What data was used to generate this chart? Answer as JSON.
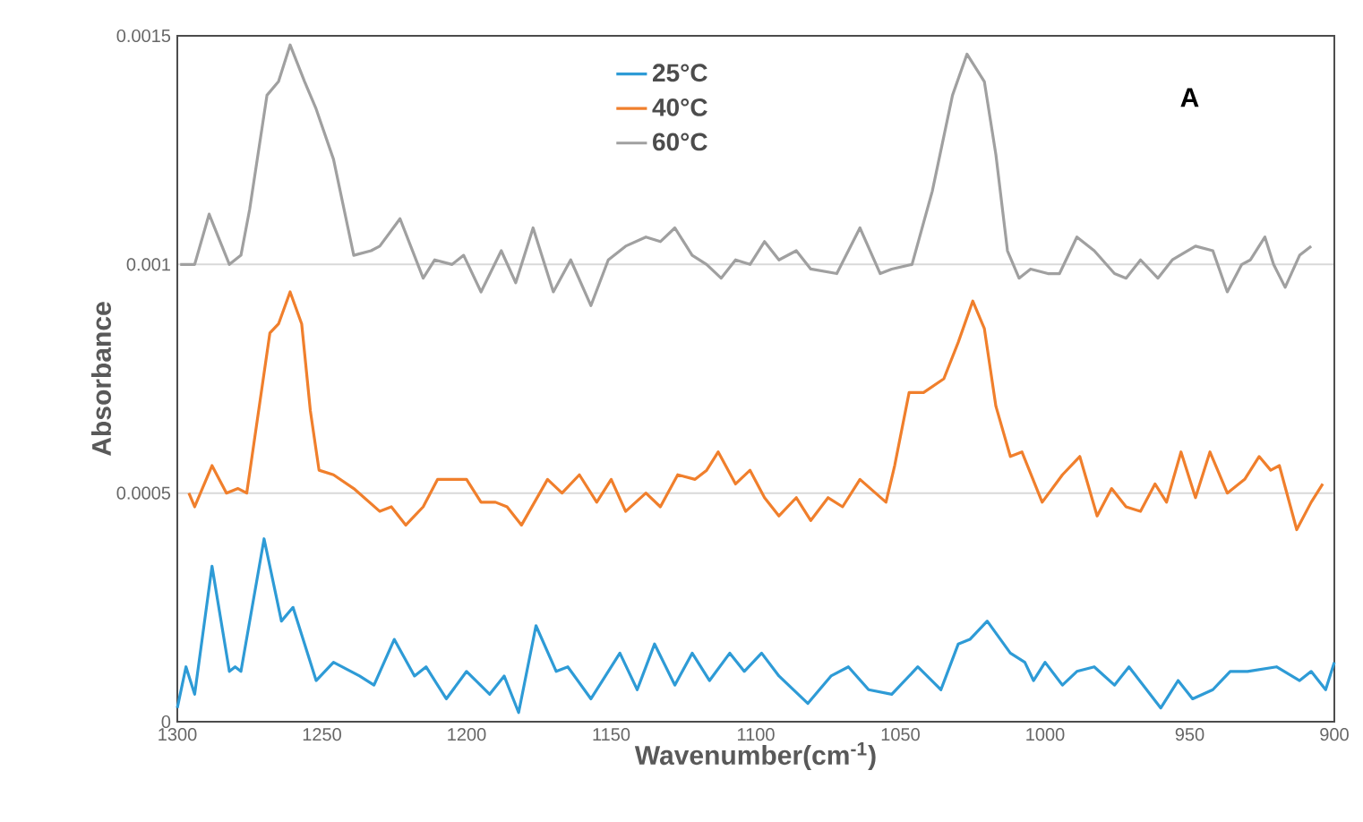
{
  "chart_data": {
    "type": "line",
    "xlabel": "Wavenumber(cm$^{-1}$)",
    "ylabel": "Absorbance",
    "annotations": [
      "A"
    ],
    "xlim": [
      1300,
      900
    ],
    "xticks": [
      1300,
      1250,
      1200,
      1150,
      1100,
      1050,
      1000,
      950,
      900
    ],
    "ylim": [
      0,
      0.0015
    ],
    "yticks": [
      0,
      0.0005,
      0.001,
      0.0015
    ],
    "grid": "y",
    "legend": "top",
    "line_style": "solid",
    "marker": "none",
    "series": [
      {
        "name": "25°C",
        "color": "#2e9bd6",
        "x": [
          1300,
          1297,
          1294,
          1288,
          1282,
          1280,
          1278,
          1270,
          1264,
          1260,
          1252,
          1246,
          1237,
          1232,
          1225,
          1218,
          1214,
          1207,
          1200,
          1192,
          1187,
          1182,
          1176,
          1169,
          1165,
          1157,
          1147,
          1141,
          1135,
          1128,
          1122,
          1116,
          1109,
          1104,
          1098,
          1092,
          1082,
          1074,
          1068,
          1061,
          1053,
          1044,
          1036,
          1030,
          1026,
          1020,
          1012,
          1007,
          1004,
          1000,
          994,
          989,
          983,
          976,
          971,
          960,
          954,
          949,
          942,
          936,
          930,
          920,
          912,
          908,
          903,
          900
        ],
        "values": [
          3e-05,
          0.00012,
          6e-05,
          0.00034,
          0.00011,
          0.00012,
          0.00011,
          0.0004,
          0.00022,
          0.00025,
          9e-05,
          0.00013,
          0.0001,
          8e-05,
          0.00018,
          0.0001,
          0.00012,
          5e-05,
          0.00011,
          6e-05,
          0.0001,
          2e-05,
          0.00021,
          0.00011,
          0.00012,
          5e-05,
          0.00015,
          7e-05,
          0.00017,
          8e-05,
          0.00015,
          9e-05,
          0.00015,
          0.00011,
          0.00015,
          0.0001,
          4e-05,
          0.0001,
          0.00012,
          7e-05,
          6e-05,
          0.00012,
          7e-05,
          0.00017,
          0.00018,
          0.00022,
          0.00015,
          0.00013,
          9e-05,
          0.00013,
          8e-05,
          0.00011,
          0.00012,
          8e-05,
          0.00012,
          3e-05,
          9e-05,
          5e-05,
          7e-05,
          0.00011,
          0.00011,
          0.00012,
          9e-05,
          0.00011,
          7e-05,
          0.00013
        ]
      },
      {
        "name": "40°C",
        "color": "#f07f2c",
        "x": [
          1296,
          1294,
          1288,
          1283,
          1279,
          1276,
          1268,
          1265,
          1261,
          1257,
          1254,
          1251,
          1246,
          1239,
          1230,
          1226,
          1221,
          1215,
          1210,
          1200,
          1195,
          1190,
          1186,
          1181,
          1172,
          1167,
          1161,
          1155,
          1150,
          1145,
          1138,
          1133,
          1127,
          1121,
          1117,
          1113,
          1107,
          1102,
          1097,
          1092,
          1086,
          1081,
          1075,
          1070,
          1064,
          1055,
          1052,
          1047,
          1042,
          1035,
          1030,
          1025,
          1021,
          1017,
          1012,
          1008,
          1001,
          994,
          988,
          982,
          977,
          972,
          967,
          962,
          958,
          953,
          948,
          943,
          937,
          931,
          926,
          922,
          919,
          913,
          908,
          904
        ],
        "values": [
          0.0005,
          0.00047,
          0.00056,
          0.0005,
          0.00051,
          0.0005,
          0.00085,
          0.00087,
          0.00094,
          0.00087,
          0.00068,
          0.00055,
          0.00054,
          0.00051,
          0.00046,
          0.00047,
          0.00043,
          0.00047,
          0.00053,
          0.00053,
          0.00048,
          0.00048,
          0.00047,
          0.00043,
          0.00053,
          0.0005,
          0.00054,
          0.00048,
          0.00053,
          0.00046,
          0.0005,
          0.00047,
          0.00054,
          0.00053,
          0.00055,
          0.00059,
          0.00052,
          0.00055,
          0.00049,
          0.00045,
          0.00049,
          0.00044,
          0.00049,
          0.00047,
          0.00053,
          0.00048,
          0.00056,
          0.00072,
          0.00072,
          0.00075,
          0.00083,
          0.00092,
          0.00086,
          0.00069,
          0.00058,
          0.00059,
          0.00048,
          0.00054,
          0.00058,
          0.00045,
          0.00051,
          0.00047,
          0.00046,
          0.00052,
          0.00048,
          0.00059,
          0.00049,
          0.00059,
          0.0005,
          0.00053,
          0.00058,
          0.00055,
          0.00056,
          0.00042,
          0.00048,
          0.00052
        ]
      },
      {
        "name": "60°C",
        "color": "#a0a0a0",
        "x": [
          1299,
          1294,
          1289,
          1282,
          1278,
          1275,
          1269,
          1265,
          1261,
          1256,
          1252,
          1246,
          1239,
          1233,
          1230,
          1223,
          1215,
          1211,
          1205,
          1201,
          1195,
          1188,
          1183,
          1177,
          1170,
          1164,
          1157,
          1151,
          1145,
          1138,
          1133,
          1128,
          1122,
          1117,
          1112,
          1107,
          1102,
          1097,
          1092,
          1086,
          1081,
          1072,
          1064,
          1057,
          1053,
          1046,
          1039,
          1032,
          1027,
          1021,
          1017,
          1013,
          1009,
          1005,
          999,
          995,
          989,
          983,
          976,
          972,
          967,
          961,
          956,
          948,
          942,
          937,
          932,
          929,
          924,
          921,
          917,
          912,
          908
        ],
        "values": [
          0.001,
          0.001,
          0.00111,
          0.001,
          0.00102,
          0.00112,
          0.00137,
          0.0014,
          0.00148,
          0.0014,
          0.00134,
          0.00123,
          0.00102,
          0.00103,
          0.00104,
          0.0011,
          0.00097,
          0.00101,
          0.001,
          0.00102,
          0.00094,
          0.00103,
          0.00096,
          0.00108,
          0.00094,
          0.00101,
          0.00091,
          0.00101,
          0.00104,
          0.00106,
          0.00105,
          0.00108,
          0.00102,
          0.001,
          0.00097,
          0.00101,
          0.001,
          0.00105,
          0.00101,
          0.00103,
          0.00099,
          0.00098,
          0.00108,
          0.00098,
          0.00099,
          0.001,
          0.00116,
          0.00137,
          0.00146,
          0.0014,
          0.00124,
          0.00103,
          0.00097,
          0.00099,
          0.00098,
          0.00098,
          0.00106,
          0.00103,
          0.00098,
          0.00097,
          0.00101,
          0.00097,
          0.00101,
          0.00104,
          0.00103,
          0.00094,
          0.001,
          0.00101,
          0.00106,
          0.001,
          0.00095,
          0.00102,
          0.00104
        ]
      }
    ]
  }
}
